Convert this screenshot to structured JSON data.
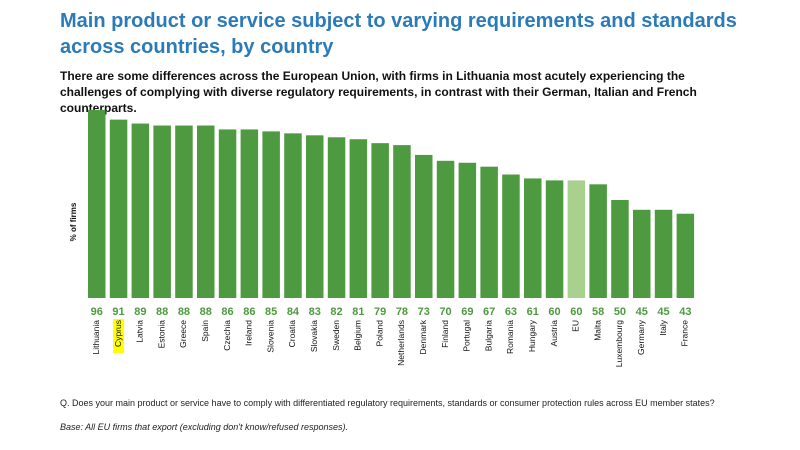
{
  "header": {
    "title": "Main product or service subject to varying requirements and standards across countries, by country",
    "subtitle": "There are some differences across the European Union, with firms in Lithuania most acutely experiencing the challenges of complying with diverse regulatory requirements, in contrast with their German, Italian and French counterparts."
  },
  "footer": {
    "question": "Q. Does your main product or service have to comply with differentiated regulatory requirements, standards or consumer protection rules across EU member states?",
    "base": "Base: All EU firms that export (excluding don't know/refused responses)."
  },
  "chart_data": {
    "type": "bar",
    "title": "",
    "xlabel": "",
    "ylabel": "% of firms",
    "ylim": [
      0,
      100
    ],
    "grid": false,
    "categories": [
      "Lithuania",
      "Cyprus",
      "Latvia",
      "Estonia",
      "Greece",
      "Spain",
      "Czechia",
      "Ireland",
      "Slovenia",
      "Croatia",
      "Slovakia",
      "Sweden",
      "Belgium",
      "Poland",
      "Netherlands",
      "Denmark",
      "Finland",
      "Portugal",
      "Bulgaria",
      "Romania",
      "Hungary",
      "Austria",
      "EU",
      "Malta",
      "Luxembourg",
      "Germany",
      "Italy",
      "France"
    ],
    "values": [
      96,
      91,
      89,
      88,
      88,
      88,
      86,
      86,
      85,
      84,
      83,
      82,
      81,
      79,
      78,
      73,
      70,
      69,
      67,
      63,
      61,
      60,
      60,
      58,
      50,
      45,
      45,
      43
    ],
    "bar_color": "#4e9a40",
    "highlight_category": "EU",
    "highlight_color": "#a9d18e",
    "label_color": "#4e9a40",
    "label_highlight": {
      "category": "Cyprus",
      "color": "#ffff00"
    }
  }
}
